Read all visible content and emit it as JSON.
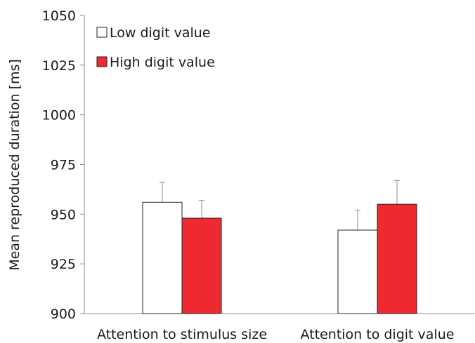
{
  "chart_data": {
    "type": "bar",
    "title": "",
    "xlabel": "",
    "ylabel": "Mean reproduced duration [ms]",
    "ylim": [
      900,
      1050
    ],
    "yticks": [
      900,
      925,
      950,
      975,
      1000,
      1025,
      1050
    ],
    "categories": [
      "Attention to stimulus size",
      "Attention to digit value"
    ],
    "series": [
      {
        "name": "Low digit value",
        "color": "#ffffff",
        "values": [
          956,
          942
        ],
        "errors": [
          10,
          10
        ]
      },
      {
        "name": "High digit value",
        "color": "#ee2a30",
        "values": [
          948,
          955
        ],
        "errors": [
          9,
          12
        ]
      }
    ],
    "legend": "top-left",
    "grid": false,
    "error_bars": true
  }
}
